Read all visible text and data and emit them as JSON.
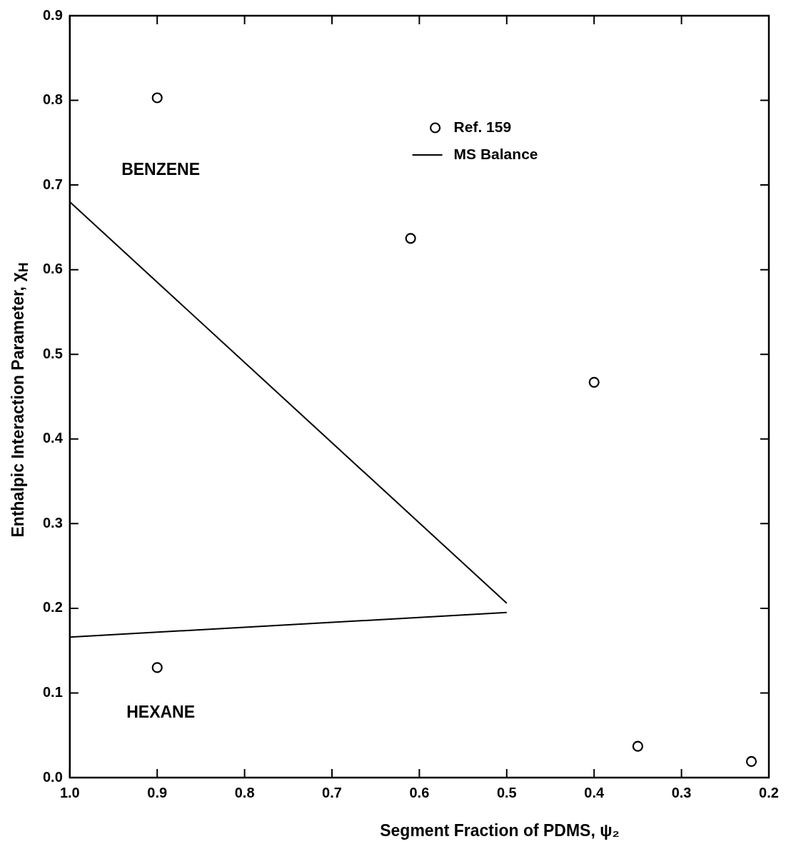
{
  "chart_data": {
    "type": "scatter",
    "xlabel": "Segment Fraction of PDMS, ψ₂",
    "ylabel": "Enthalpic Interaction Parameter, χ$_{H}$",
    "xlim": [
      1.0,
      0.2
    ],
    "ylim": [
      0,
      0.9
    ],
    "xticks": [
      {
        "value": 1,
        "label": "1.0"
      },
      0.9,
      0.8,
      0.7,
      0.6,
      0.5,
      0.4,
      0.3,
      0.2
    ],
    "yticks": [
      {
        "value": 0,
        "label": "0.0"
      },
      0.1,
      0.2,
      0.3,
      0.4,
      0.5,
      0.6,
      0.7,
      0.8,
      0.9
    ],
    "grid": false,
    "legend": "top right",
    "series": [
      {
        "name": "Ref. 159",
        "type": "scatter",
        "marker": "circle",
        "color": "#000000",
        "x": [
          0.9,
          0.61,
          0.4,
          0.35,
          0.22,
          0.9
        ],
        "values": [
          0.803,
          0.637,
          0.467,
          0.037,
          0.019,
          0.13
        ]
      },
      {
        "name": "MS Balance",
        "type": "line",
        "marker": "none",
        "line_style": "solid",
        "color": "#000000",
        "x": [
          1.0,
          0.5
        ],
        "values": [
          0.68,
          0.206
        ]
      },
      {
        "type": "line",
        "marker": "none",
        "line_style": "solid",
        "color": "#000000",
        "x": [
          1.0,
          0.5
        ],
        "values": [
          0.166,
          0.195
        ]
      }
    ],
    "annotations": [
      "BENZENE",
      "HEXANE"
    ]
  }
}
